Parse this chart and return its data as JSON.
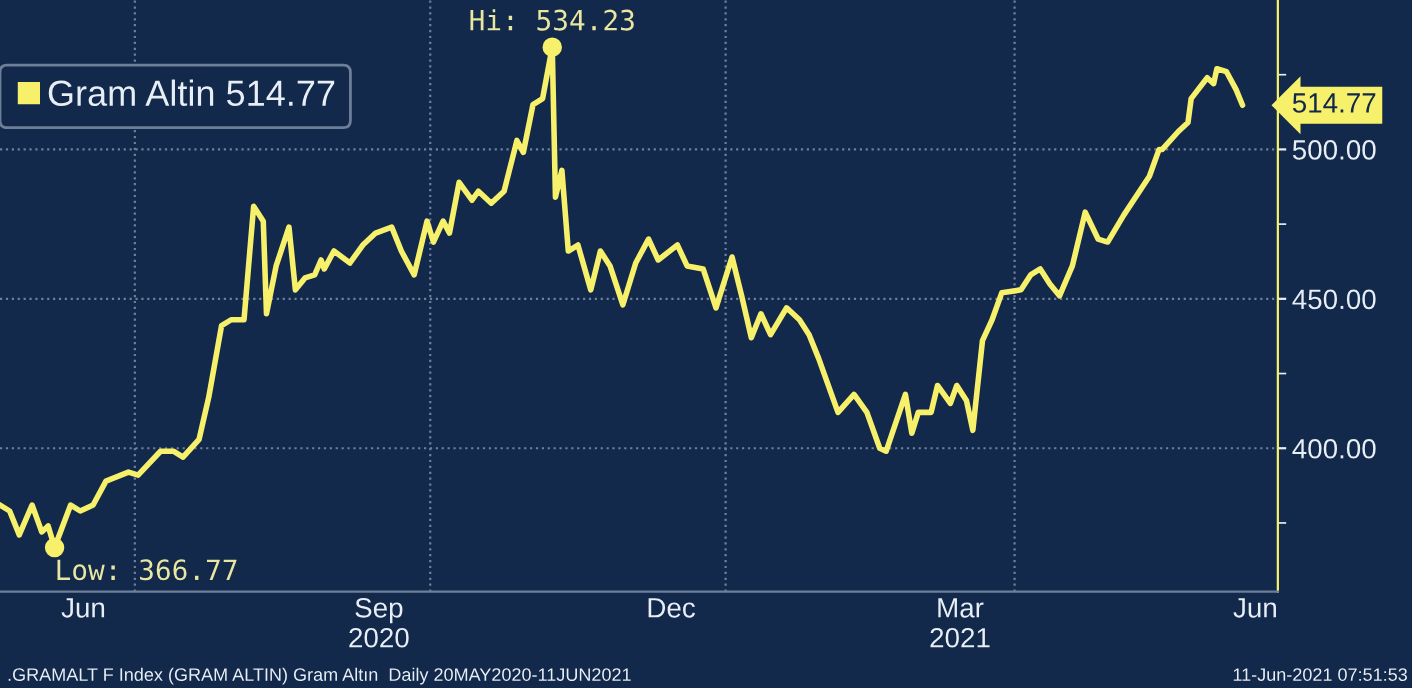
{
  "chart_data": {
    "type": "line",
    "x": [
      "2020-05-20",
      "2020-05-23",
      "2020-05-26",
      "2020-05-30",
      "2020-06-02",
      "2020-06-04",
      "2020-06-06",
      "2020-06-11",
      "2020-06-14",
      "2020-06-18",
      "2020-06-22",
      "2020-06-29",
      "2020-07-02",
      "2020-07-09",
      "2020-07-13",
      "2020-07-16",
      "2020-07-21",
      "2020-07-24",
      "2020-07-28",
      "2020-07-31",
      "2020-08-04",
      "2020-08-07",
      "2020-08-10",
      "2020-08-11",
      "2020-08-14",
      "2020-08-18",
      "2020-08-20",
      "2020-08-23",
      "2020-08-26",
      "2020-08-28",
      "2020-08-29",
      "2020-09-01",
      "2020-09-06",
      "2020-09-10",
      "2020-09-14",
      "2020-09-19",
      "2020-09-22",
      "2020-09-26",
      "2020-09-30",
      "2020-10-02",
      "2020-10-05",
      "2020-10-07",
      "2020-10-10",
      "2020-10-14",
      "2020-10-16",
      "2020-10-20",
      "2020-10-24",
      "2020-10-28",
      "2020-10-30",
      "2020-11-02",
      "2020-11-05",
      "2020-11-08",
      "2020-11-09",
      "2020-11-11",
      "2020-11-13",
      "2020-11-16",
      "2020-11-20",
      "2020-11-23",
      "2020-11-26",
      "2020-11-30",
      "2020-12-04",
      "2020-12-08",
      "2020-12-11",
      "2020-12-17",
      "2020-12-20",
      "2020-12-25",
      "2020-12-29",
      "2021-01-03",
      "2021-01-06",
      "2021-01-09",
      "2021-01-12",
      "2021-01-15",
      "2021-01-20",
      "2021-01-24",
      "2021-01-27",
      "2021-01-30",
      "2021-02-05",
      "2021-02-10",
      "2021-02-14",
      "2021-02-18",
      "2021-02-20",
      "2021-02-26",
      "2021-02-28",
      "2021-03-02",
      "2021-03-06",
      "2021-03-08",
      "2021-03-12",
      "2021-03-14",
      "2021-03-17",
      "2021-03-19",
      "2021-03-22",
      "2021-03-25",
      "2021-03-28",
      "2021-04-03",
      "2021-04-06",
      "2021-04-09",
      "2021-04-12",
      "2021-04-15",
      "2021-04-19",
      "2021-04-23",
      "2021-04-27",
      "2021-04-30",
      "2021-05-05",
      "2021-05-13",
      "2021-05-16",
      "2021-05-17",
      "2021-05-22",
      "2021-05-25",
      "2021-05-26",
      "2021-05-31",
      "2021-06-02",
      "2021-06-03",
      "2021-06-06",
      "2021-06-09",
      "2021-06-11"
    ],
    "series": [
      {
        "name": "Gram Altin 514.77",
        "color": "#f7f06b",
        "values": [
          381,
          379,
          371,
          381,
          372,
          374,
          366.77,
          381,
          379,
          381,
          389,
          392,
          391,
          399,
          399,
          397,
          403,
          417,
          441,
          443,
          443,
          481,
          476,
          445,
          461,
          474,
          453,
          457,
          458,
          463,
          460,
          466,
          462,
          468,
          472,
          474,
          466,
          458,
          476,
          469,
          476,
          472,
          489,
          483,
          486,
          482,
          486,
          503,
          499,
          515,
          517,
          534.23,
          484,
          493,
          466,
          468,
          453,
          466,
          461,
          448,
          462,
          470,
          463,
          468,
          461,
          460,
          447,
          464,
          451,
          437,
          445,
          438,
          447,
          443,
          438,
          430,
          412,
          418,
          412,
          400,
          399,
          418,
          405,
          412,
          412,
          421,
          415,
          421,
          416,
          406,
          436,
          443,
          452,
          453,
          458,
          460,
          455,
          451,
          461,
          479,
          470,
          469,
          478,
          491,
          500,
          500,
          506,
          509,
          517,
          524,
          522,
          527,
          526,
          520,
          514.77
        ]
      }
    ],
    "xlim": [
      "2020-05-20",
      "2021-06-22"
    ],
    "xticks": [
      {
        "value": "2020-06-15",
        "label": "Jun"
      },
      {
        "value": "2020-07-01",
        "label": null
      },
      {
        "value": "2020-09-15",
        "label": "Sep\n2020"
      },
      {
        "value": "2020-10-01",
        "label": null
      },
      {
        "value": "2020-12-15",
        "label": "Dec"
      },
      {
        "value": "2021-01-01",
        "label": null
      },
      {
        "value": "2021-03-15",
        "label": "Mar\n2021"
      },
      {
        "value": "2021-04-01",
        "label": null
      },
      {
        "value": "2021-06-15",
        "label": "Jun"
      }
    ],
    "ylim": [
      352,
      550
    ],
    "yticks": [
      {
        "value": 375,
        "label": null
      },
      {
        "value": 400,
        "label": "400.00"
      },
      {
        "value": 425,
        "label": null
      },
      {
        "value": 450,
        "label": "450.00"
      },
      {
        "value": 475,
        "label": null
      },
      {
        "value": 500,
        "label": "500.00"
      },
      {
        "value": 525,
        "label": null
      }
    ],
    "grid": true,
    "legend": "top left",
    "marker": "none",
    "line_style": "solid",
    "annotations": [
      {
        "text": "Hi: 534.23",
        "x": "2020-11-08",
        "y": 534.23
      },
      {
        "text": "Low: 366.77",
        "x": "2020-06-06",
        "y": 366.77
      },
      {
        "text": "514.77",
        "x": "2021-06-11",
        "y": 514.77
      },
      ".GRAMALT F Index (GRAM ALTIN) Gram Altın  Daily 20MAY2020-11JUN2021",
      "11-Jun-2021 07:51:53"
    ]
  }
}
